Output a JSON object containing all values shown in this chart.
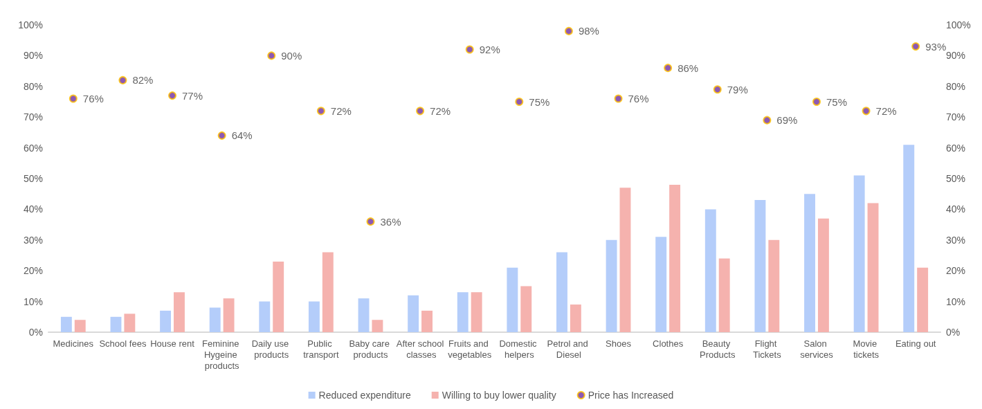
{
  "chart_data": {
    "type": "bar",
    "categories": [
      "Medicines",
      "School fees",
      "House rent",
      "Feminine Hygeine products",
      "Daily use products",
      "Public transport",
      "Baby care products",
      "After school classes",
      "Fruits and vegetables",
      "Domestic helpers",
      "Petrol and Diesel",
      "Shoes",
      "Clothes",
      "Beauty Products",
      "Flight Tickets",
      "Salon services",
      "Movie tickets",
      "Eating out"
    ],
    "series": [
      {
        "name": "Reduced expenditure",
        "color": "#b4cdfa",
        "values": [
          5,
          5,
          7,
          8,
          10,
          10,
          11,
          12,
          13,
          21,
          26,
          30,
          31,
          40,
          43,
          45,
          51,
          61
        ]
      },
      {
        "name": "Willing to buy lower quality",
        "color": "#f5b2ae",
        "values": [
          4,
          6,
          13,
          11,
          23,
          26,
          4,
          7,
          13,
          15,
          9,
          47,
          48,
          24,
          30,
          37,
          42,
          21
        ]
      },
      {
        "name": "Price has Increased",
        "type": "scatter",
        "color": "#7030a0",
        "values": [
          76,
          82,
          77,
          64,
          90,
          72,
          36,
          72,
          92,
          75,
          98,
          76,
          86,
          79,
          69,
          75,
          72,
          93
        ],
        "value_labels": [
          "76%",
          "82%",
          "77%",
          "64%",
          "90%",
          "72%",
          "36%",
          "72%",
          "92%",
          "75%",
          "98%",
          "76%",
          "86%",
          "79%",
          "69%",
          "75%",
          "72%",
          "93%"
        ]
      }
    ],
    "ylim": [
      0,
      100
    ],
    "yticks": [
      {
        "value": 0,
        "label": "0%"
      },
      {
        "value": 10,
        "label": "10%"
      },
      {
        "value": 20,
        "label": "20%"
      },
      {
        "value": 30,
        "label": "30%"
      },
      {
        "value": 40,
        "label": "40%"
      },
      {
        "value": 50,
        "label": "50%"
      },
      {
        "value": 60,
        "label": "60%"
      },
      {
        "value": 70,
        "label": "70%"
      },
      {
        "value": 80,
        "label": "80%"
      },
      {
        "value": 90,
        "label": "90%"
      },
      {
        "value": 100,
        "label": "100%"
      }
    ],
    "y2lim": [
      0,
      100
    ],
    "y2ticks": [
      {
        "value": 0,
        "label": "0%"
      },
      {
        "value": 10,
        "label": "10%"
      },
      {
        "value": 20,
        "label": "20%"
      },
      {
        "value": 30,
        "label": "30%"
      },
      {
        "value": 40,
        "label": "40%"
      },
      {
        "value": 50,
        "label": "50%"
      },
      {
        "value": 60,
        "label": "60%"
      },
      {
        "value": 70,
        "label": "70%"
      },
      {
        "value": 80,
        "label": "80%"
      },
      {
        "value": 90,
        "label": "90%"
      },
      {
        "value": 100,
        "label": "100%"
      }
    ],
    "grid": false,
    "legend": "bottom",
    "marker": "circle"
  }
}
